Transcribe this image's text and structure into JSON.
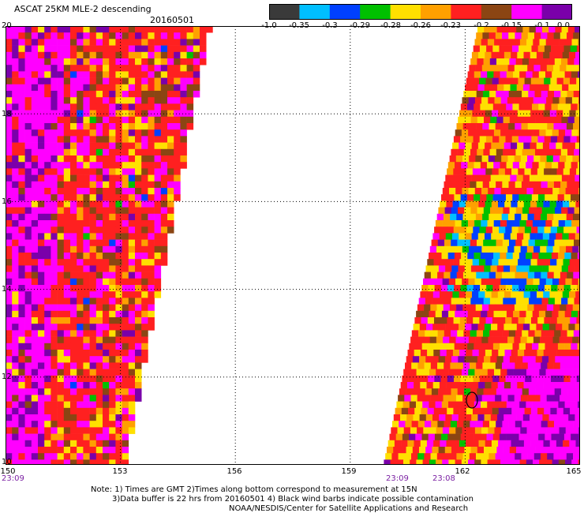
{
  "header": {
    "title": "ASCAT 25KM MLE-2 descending",
    "date": "20160501"
  },
  "colorbar": {
    "labels": [
      "-1.0",
      "-0.35",
      "-0.3",
      "-0.29",
      "-0.28",
      "-0.26",
      "-0.23",
      "-0.2",
      "-0.15",
      "-0.1",
      "0.0"
    ],
    "colors": [
      "#3a3a3a",
      "#00bfff",
      "#0040ff",
      "#00c000",
      "#ffe000",
      "#ffa000",
      "#ff2020",
      "#8b4513",
      "#ff00ff",
      "#7a00aa"
    ]
  },
  "map": {
    "lon_ticks": [
      "150",
      "153",
      "156",
      "159",
      "162",
      "165"
    ],
    "lat_ticks": [
      "20",
      "18",
      "16",
      "14",
      "12",
      "10"
    ],
    "lon_range": [
      150,
      165
    ],
    "lat_range": [
      10,
      20
    ],
    "times": {
      "left": "23:09",
      "right_a": "23:09",
      "right_b": "23:08"
    }
  },
  "footer": {
    "note1": "Note: 1) Times are GMT 2)Times along bottom correspond to measurement at 15N",
    "note2": "3)Data buffer is 22 hrs from 20160501 4) Black wind barbs indicate possible contamination",
    "credit": "NOAA/NESDIS/Center for Satellite Applications and Research"
  }
}
